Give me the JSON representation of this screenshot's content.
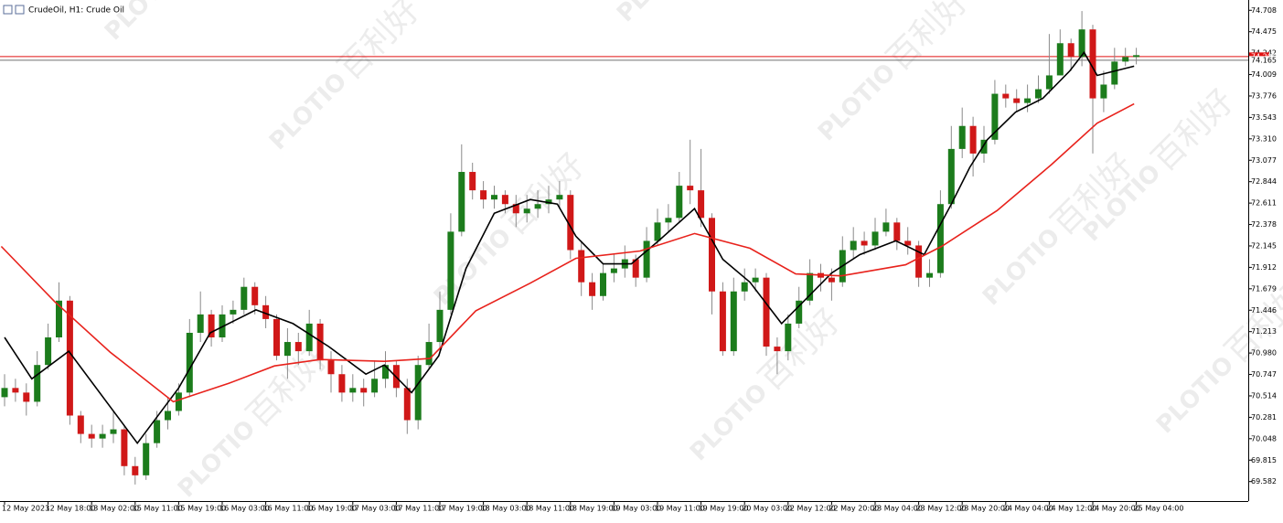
{
  "chart_data": {
    "type": "candlestick",
    "title": "CrudeOil, H1:  Crude Oil",
    "watermark": [
      "PLOTIO",
      "百利好"
    ],
    "categories": [
      "12 May 2023",
      null,
      null,
      null,
      "12 May 18:00",
      null,
      null,
      null,
      "13 May 02:00",
      null,
      null,
      null,
      "15 May 11:00",
      null,
      null,
      null,
      "15 May 19:00",
      null,
      null,
      null,
      "16 May 03:00",
      null,
      null,
      null,
      "16 May 11:00",
      null,
      null,
      null,
      "16 May 19:00",
      null,
      null,
      null,
      "17 May 03:00",
      null,
      null,
      null,
      "17 May 11:00",
      null,
      null,
      null,
      "17 May 19:00",
      null,
      null,
      null,
      "18 May 03:00",
      null,
      null,
      null,
      "18 May 11:00",
      null,
      null,
      null,
      "18 May 19:00",
      null,
      null,
      null,
      "19 May 03:00",
      null,
      null,
      null,
      "19 May 11:00",
      null,
      null,
      null,
      "19 May 19:00",
      null,
      null,
      null,
      "20 May 03:00",
      null,
      null,
      null,
      "22 May 12:00",
      null,
      null,
      null,
      "22 May 20:00",
      null,
      null,
      null,
      "23 May 04:00",
      null,
      null,
      null,
      "23 May 12:00",
      null,
      null,
      null,
      "23 May 20:00",
      null,
      null,
      null,
      "24 May 04:00",
      null,
      null,
      null,
      "24 May 12:00",
      null,
      null,
      null,
      "24 May 20:00",
      null,
      null,
      null,
      "25 May 04:00"
    ],
    "open": [
      70.5,
      70.6,
      70.55,
      70.45,
      70.85,
      71.15,
      71.55,
      70.3,
      70.1,
      70.05,
      70.1,
      70.15,
      69.75,
      69.65,
      70.0,
      70.25,
      70.35,
      70.55,
      71.2,
      71.4,
      71.15,
      71.4,
      71.45,
      71.7,
      71.5,
      71.35,
      70.95,
      71.1,
      71.0,
      71.3,
      70.9,
      70.75,
      70.55,
      70.6,
      70.55,
      70.7,
      70.85,
      70.6,
      70.25,
      70.85,
      71.1,
      71.45,
      72.3,
      72.95,
      72.75,
      72.65,
      72.7,
      72.6,
      72.5,
      72.55,
      72.6,
      72.65,
      72.7,
      72.1,
      71.75,
      71.6,
      71.85,
      71.9,
      72.0,
      71.8,
      72.2,
      72.4,
      72.45,
      72.8,
      72.75,
      72.45,
      71.65,
      71.0,
      71.65,
      71.75,
      71.8,
      71.05,
      71.0,
      71.3,
      71.55,
      71.85,
      71.8,
      71.75,
      72.1,
      72.2,
      72.15,
      72.3,
      72.4,
      72.2,
      72.15,
      71.8,
      71.85,
      72.6,
      73.2,
      73.45,
      73.15,
      73.3,
      73.8,
      73.75,
      73.7,
      73.75,
      73.85,
      74.0,
      74.35,
      74.2,
      74.5,
      73.75,
      73.9,
      74.15,
      74.2
    ],
    "high": [
      70.75,
      70.7,
      70.65,
      71.0,
      71.3,
      71.75,
      71.6,
      70.35,
      70.2,
      70.2,
      70.35,
      70.2,
      69.85,
      70.1,
      70.35,
      70.5,
      70.65,
      71.35,
      71.65,
      71.45,
      71.5,
      71.55,
      71.8,
      71.75,
      71.6,
      71.4,
      71.25,
      71.2,
      71.45,
      71.35,
      71.0,
      70.85,
      70.75,
      70.7,
      70.9,
      71.0,
      70.9,
      70.7,
      70.95,
      71.3,
      71.65,
      72.5,
      73.25,
      73.05,
      72.85,
      72.8,
      72.75,
      72.7,
      72.7,
      72.75,
      72.8,
      72.85,
      72.75,
      72.2,
      71.85,
      71.95,
      72.05,
      72.15,
      72.05,
      72.35,
      72.55,
      72.6,
      72.95,
      73.3,
      73.2,
      72.5,
      71.75,
      71.8,
      71.9,
      71.9,
      71.85,
      71.15,
      71.4,
      71.7,
      72.0,
      71.95,
      71.9,
      72.25,
      72.35,
      72.3,
      72.45,
      72.55,
      72.45,
      72.35,
      72.2,
      72.0,
      72.75,
      73.45,
      73.65,
      73.55,
      73.45,
      73.95,
      73.9,
      73.85,
      73.9,
      74.0,
      74.45,
      74.5,
      74.4,
      74.7,
      74.55,
      74.05,
      74.3,
      74.3,
      74.3
    ],
    "low": [
      70.4,
      70.45,
      70.3,
      70.4,
      70.8,
      71.1,
      70.2,
      70.0,
      69.95,
      69.95,
      70.0,
      69.65,
      69.55,
      69.6,
      69.95,
      70.15,
      70.3,
      70.5,
      71.1,
      71.05,
      71.1,
      71.3,
      71.4,
      71.4,
      71.25,
      70.9,
      70.7,
      70.85,
      70.95,
      70.8,
      70.55,
      70.45,
      70.45,
      70.4,
      70.5,
      70.6,
      70.5,
      70.1,
      70.15,
      70.8,
      71.0,
      71.4,
      72.25,
      72.65,
      72.55,
      72.55,
      72.5,
      72.35,
      72.4,
      72.45,
      72.5,
      72.55,
      72.0,
      71.6,
      71.45,
      71.55,
      71.75,
      71.8,
      71.7,
      71.75,
      72.15,
      72.3,
      72.4,
      72.6,
      72.35,
      71.4,
      70.95,
      70.95,
      71.55,
      71.65,
      70.95,
      70.75,
      70.9,
      71.25,
      71.5,
      71.65,
      71.55,
      71.7,
      72.0,
      72.05,
      72.1,
      72.25,
      72.1,
      72.05,
      71.7,
      71.7,
      71.8,
      72.55,
      73.1,
      72.9,
      73.05,
      73.25,
      73.65,
      73.6,
      73.6,
      73.7,
      73.8,
      74.0,
      74.05,
      74.1,
      73.15,
      73.6,
      73.85,
      74.1,
      74.12
    ],
    "close": [
      70.6,
      70.55,
      70.45,
      70.85,
      71.15,
      71.55,
      70.3,
      70.1,
      70.05,
      70.1,
      70.15,
      69.75,
      69.65,
      70.0,
      70.25,
      70.35,
      70.55,
      71.2,
      71.4,
      71.15,
      71.4,
      71.45,
      71.7,
      71.5,
      71.35,
      70.95,
      71.1,
      71.0,
      71.3,
      70.9,
      70.75,
      70.55,
      70.6,
      70.55,
      70.7,
      70.85,
      70.6,
      70.25,
      70.85,
      71.1,
      71.45,
      72.3,
      72.95,
      72.75,
      72.65,
      72.7,
      72.6,
      72.5,
      72.55,
      72.6,
      72.65,
      72.7,
      72.1,
      71.75,
      71.6,
      71.85,
      71.9,
      72.0,
      71.8,
      72.2,
      72.4,
      72.45,
      72.8,
      72.75,
      72.45,
      71.65,
      71.0,
      71.65,
      71.75,
      71.8,
      71.05,
      71.0,
      71.3,
      71.55,
      71.85,
      71.8,
      71.75,
      72.1,
      72.2,
      72.15,
      72.3,
      72.4,
      72.2,
      72.15,
      71.8,
      71.85,
      72.6,
      73.2,
      73.45,
      73.15,
      73.3,
      73.8,
      73.75,
      73.7,
      73.75,
      73.85,
      74.0,
      74.35,
      74.2,
      74.5,
      73.75,
      73.9,
      74.15,
      74.2,
      74.22
    ],
    "up_color": "#1c7c1c",
    "down_color": "#d01818",
    "wick_color": "#8a8a8a",
    "lines": [
      {
        "color": "#000000",
        "x": [
          0,
          2.5,
          5.9,
          12.2,
          16,
          18.9,
          23.1,
          26.5,
          29.8,
          33.2,
          34.9,
          37.4,
          39.9,
          42.4,
          45,
          48.3,
          50.8,
          52.5,
          55,
          57.6,
          60.1,
          63.4,
          66,
          68.5,
          71.4,
          73.5,
          76,
          78.6,
          81.9,
          84.5,
          87,
          88.7,
          90.3,
          92.9,
          95.4,
          97.9,
          99.2,
          100.4,
          103.8
        ],
        "values": [
          71.15,
          70.7,
          71.0,
          70.0,
          70.6,
          71.2,
          71.45,
          71.3,
          71.05,
          70.75,
          70.85,
          70.55,
          70.95,
          71.9,
          72.5,
          72.65,
          72.6,
          72.25,
          71.95,
          71.95,
          72.2,
          72.55,
          72.0,
          71.75,
          71.3,
          71.55,
          71.85,
          72.05,
          72.2,
          72.05,
          72.6,
          73.0,
          73.3,
          73.6,
          73.75,
          74.05,
          74.25,
          74.0,
          74.1
        ]
      },
      {
        "color": "#e8221c",
        "x": [
          -0.3,
          4.6,
          9.7,
          15.5,
          20.6,
          24.8,
          29,
          34.9,
          39.1,
          43.3,
          48.3,
          52.5,
          58.4,
          63.4,
          68.5,
          72.7,
          76.9,
          82.8,
          86.1,
          91.2,
          96.2,
          100.4,
          103.8
        ],
        "values": [
          72.14,
          71.54,
          70.99,
          70.45,
          70.65,
          70.84,
          70.91,
          70.89,
          70.92,
          71.44,
          71.74,
          72.01,
          72.09,
          72.28,
          72.12,
          71.84,
          71.82,
          71.94,
          72.14,
          72.53,
          73.03,
          73.48,
          73.69
        ]
      }
    ],
    "price_lines": [
      {
        "value": 74.205,
        "color": "#e01010"
      },
      {
        "value": 74.165,
        "color": "#707070"
      }
    ],
    "ylim": [
      69.37,
      74.82
    ],
    "yticks": [
      74.708,
      74.475,
      74.242,
      74.009,
      73.776,
      73.543,
      {
        "value": 73.31,
        "label": "73.310"
      },
      73.077,
      72.844,
      72.611,
      72.378,
      72.145,
      71.912,
      71.679,
      71.446,
      71.213,
      {
        "value": 70.98,
        "label": "70.980"
      },
      70.747,
      70.514,
      70.281,
      70.048,
      69.815,
      69.582
    ]
  }
}
